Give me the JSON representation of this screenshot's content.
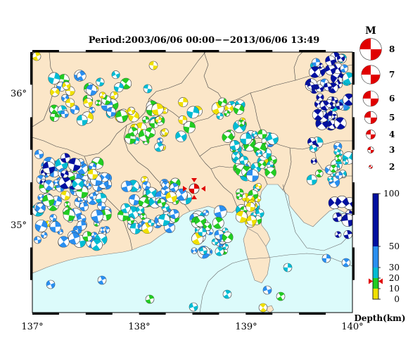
{
  "title": "Period:2003/06/06 00:00−−2013/06/06 13:49",
  "axes": {
    "x_ticks": [
      "137°",
      "138°",
      "139°",
      "140°"
    ],
    "y_ticks": [
      "36°",
      "35°"
    ]
  },
  "magnitude_legend": {
    "header": "M",
    "items": [
      "8",
      "7",
      "6",
      "5",
      "4",
      "3",
      "2"
    ],
    "values": [
      8,
      7,
      6,
      5,
      4,
      3,
      2
    ]
  },
  "depth_legend": {
    "label": "Depth(km)",
    "ticks": [
      "100",
      "50",
      "30",
      "20",
      "10",
      "0"
    ],
    "tick_values": [
      100,
      50,
      30,
      20,
      10,
      0
    ],
    "bands": [
      {
        "from": 0,
        "to": 10,
        "color": "#f0e000"
      },
      {
        "from": 10,
        "to": 20,
        "color": "#22cc22"
      },
      {
        "from": 20,
        "to": 30,
        "color": "#00bcd4"
      },
      {
        "from": 30,
        "to": 50,
        "color": "#2a8ff0"
      },
      {
        "from": 50,
        "to": 100,
        "color": "#0010a0"
      }
    ],
    "marker_depth": 17
  },
  "colors": {
    "land": "#fbe6c8",
    "sea": "#dcfbfb",
    "mainshock": "#e00000"
  }
}
